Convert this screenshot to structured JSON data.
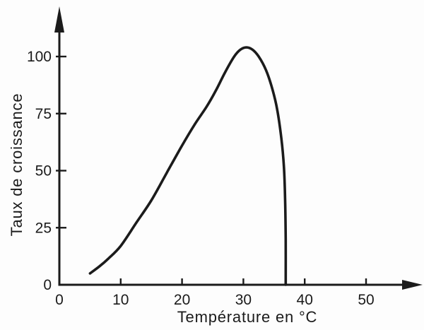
{
  "chart_data": {
    "type": "line",
    "title": "",
    "xlabel": "Température en °C",
    "ylabel": "Taux de croissance",
    "x_ticks": [
      0,
      10,
      20,
      30,
      40,
      50
    ],
    "y_ticks": [
      0,
      25,
      50,
      75,
      100
    ],
    "xlim": [
      0,
      50
    ],
    "ylim": [
      0,
      100
    ],
    "grid": false,
    "legend": "none",
    "axis_arrows": true,
    "ink_color": "#1b1b1b",
    "background_color": "#fdfdfd",
    "series": [
      {
        "name": "taux de croissance",
        "color": "#1b1b1b",
        "points": [
          [
            5,
            5
          ],
          [
            6.5,
            8
          ],
          [
            8,
            11.5
          ],
          [
            10,
            17
          ],
          [
            12.5,
            27
          ],
          [
            15,
            37
          ],
          [
            17.5,
            49
          ],
          [
            20,
            61
          ],
          [
            22,
            70
          ],
          [
            24,
            78
          ],
          [
            25.5,
            85
          ],
          [
            27,
            93
          ],
          [
            28.5,
            100
          ],
          [
            29.5,
            103
          ],
          [
            30.5,
            104
          ],
          [
            31.5,
            103
          ],
          [
            32.5,
            100
          ],
          [
            33.7,
            94
          ],
          [
            34.7,
            86
          ],
          [
            35.5,
            77
          ],
          [
            36.2,
            64
          ],
          [
            36.6,
            52
          ],
          [
            36.8,
            38
          ],
          [
            36.9,
            20
          ],
          [
            36.9,
            0
          ]
        ]
      }
    ]
  }
}
